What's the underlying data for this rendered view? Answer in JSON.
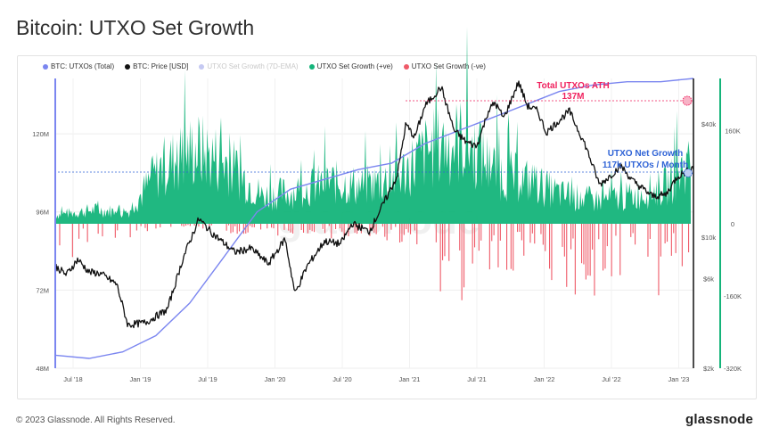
{
  "page_title": "Bitcoin: UTXO Set Growth",
  "footer": {
    "copyright": "© 2023 Glassnode. All Rights Reserved.",
    "brand": "glassnode"
  },
  "colors": {
    "utxos_total": "#7b86f0",
    "price": "#111111",
    "ema": "#c5c9f2",
    "positive": "#14b47a",
    "negative": "#ef5a68",
    "annotation_ath": "#f0215e",
    "annotation_growth": "#2f63d6"
  },
  "chart_data": {
    "type": "area",
    "title": "Bitcoin: UTXO Set Growth",
    "legend_position": "top-left",
    "legend": [
      {
        "label": "BTC: UTXOs (Total)",
        "color": "#7b86f0"
      },
      {
        "label": "BTC: Price [USD]",
        "color": "#111111"
      },
      {
        "label": "UTXO Set Growth (7D-EMA)",
        "color": "#c5c9f2"
      },
      {
        "label": "UTXO Set Growth (+ve)",
        "color": "#14b47a"
      },
      {
        "label": "UTXO Set Growth (-ve)",
        "color": "#ef5a68"
      }
    ],
    "x_ticks": [
      "Jul '18",
      "Jan '19",
      "Jul '19",
      "Jan '20",
      "Jul '20",
      "Jan '21",
      "Jul '21",
      "Jan '22",
      "Jul '22",
      "Jan '23"
    ],
    "y_left_ticks": [
      "120M",
      "96M",
      "72M",
      "48M"
    ],
    "y_left_range": [
      48,
      137
    ],
    "y_price_ticks": [
      "$40k",
      "$10k",
      "$6k",
      "$2k"
    ],
    "y_price_scale": "log",
    "y_price_range": [
      2000,
      70000
    ],
    "y_right_ticks": [
      "160K",
      "0",
      "-160K",
      "-320K"
    ],
    "y_right_range": [
      -320,
      250
    ],
    "grid": true,
    "watermark": "glassnode",
    "annotations": [
      {
        "line1": "Total UTXOs ATH",
        "line2": "137M"
      },
      {
        "line1": "UTXO Net Growth",
        "line2": "117k UTXOs / Month"
      }
    ],
    "x_range": [
      "2018-06-01",
      "2023-02-28"
    ],
    "series": [
      {
        "name": "BTC: UTXOs (Total)",
        "unit": "M",
        "x": [
          "2018-06-01",
          "2018-09-01",
          "2018-12-01",
          "2019-03-01",
          "2019-06-01",
          "2019-09-01",
          "2019-12-01",
          "2020-03-01",
          "2020-06-01",
          "2020-09-01",
          "2020-12-01",
          "2021-03-01",
          "2021-06-01",
          "2021-09-01",
          "2021-12-01",
          "2022-03-01",
          "2022-06-01",
          "2022-09-01",
          "2022-12-01",
          "2023-02-28"
        ],
        "values": [
          52,
          51,
          53,
          58,
          68,
          82,
          96,
          103,
          106,
          109,
          111,
          117,
          121,
          125,
          129,
          133,
          135,
          136,
          136,
          137
        ]
      },
      {
        "name": "BTC: Price [USD]",
        "unit": "USD",
        "x": [
          "2018-06-01",
          "2018-07-01",
          "2018-08-01",
          "2018-09-01",
          "2018-10-01",
          "2018-11-15",
          "2018-12-15",
          "2019-02-01",
          "2019-04-01",
          "2019-05-15",
          "2019-06-26",
          "2019-08-01",
          "2019-10-01",
          "2019-11-15",
          "2020-01-01",
          "2020-02-15",
          "2020-03-13",
          "2020-04-15",
          "2020-06-01",
          "2020-07-15",
          "2020-08-15",
          "2020-10-01",
          "2020-11-15",
          "2020-12-15",
          "2021-01-08",
          "2021-02-01",
          "2021-03-01",
          "2021-04-14",
          "2021-05-19",
          "2021-06-22",
          "2021-07-20",
          "2021-08-20",
          "2021-09-07",
          "2021-10-01",
          "2021-11-10",
          "2021-12-04",
          "2022-01-01",
          "2022-01-24",
          "2022-03-28",
          "2022-05-10",
          "2022-06-18",
          "2022-07-15",
          "2022-08-15",
          "2022-09-15",
          "2022-11-09",
          "2022-12-15",
          "2023-01-15",
          "2023-02-28"
        ],
        "values": [
          7000,
          6300,
          7600,
          6500,
          6400,
          5600,
          3400,
          3500,
          4100,
          7800,
          12500,
          10500,
          8300,
          8700,
          7200,
          9800,
          5000,
          7000,
          9500,
          9200,
          11800,
          10700,
          16000,
          21000,
          40000,
          34000,
          50000,
          63000,
          37000,
          32000,
          30500,
          47000,
          52000,
          43000,
          67000,
          50000,
          47000,
          36000,
          47000,
          31000,
          19000,
          21000,
          24000,
          20000,
          16500,
          16800,
          21000,
          23500
        ]
      },
      {
        "name": "UTXO Set Growth (+ve)",
        "unit": "K",
        "x": [
          "2018-06",
          "2018-09",
          "2018-12",
          "2019-03",
          "2019-06",
          "2019-09",
          "2019-12",
          "2020-03",
          "2020-06",
          "2020-09",
          "2020-12",
          "2021-03",
          "2021-06",
          "2021-09",
          "2021-12",
          "2022-03",
          "2022-06",
          "2022-09",
          "2022-12",
          "2023-02"
        ],
        "values": [
          20,
          30,
          25,
          120,
          160,
          130,
          60,
          70,
          90,
          80,
          100,
          160,
          180,
          110,
          90,
          60,
          50,
          60,
          80,
          130
        ]
      },
      {
        "name": "UTXO Set Growth (-ve)",
        "unit": "K",
        "x": [
          "2018-06",
          "2018-09",
          "2018-12",
          "2019-03",
          "2019-06",
          "2019-09",
          "2019-12",
          "2020-03",
          "2020-06",
          "2020-09",
          "2020-12",
          "2021-03",
          "2021-06",
          "2021-09",
          "2021-12",
          "2022-03",
          "2022-06",
          "2022-09",
          "2022-12",
          "2023-02"
        ],
        "values": [
          -90,
          -60,
          -30,
          -10,
          -10,
          -20,
          -30,
          -20,
          -25,
          -30,
          -40,
          -60,
          -200,
          -120,
          -80,
          -170,
          -120,
          -110,
          -150,
          -90
        ]
      }
    ]
  }
}
